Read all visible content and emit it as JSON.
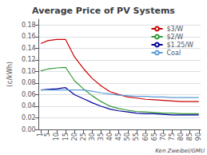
{
  "chart_data": {
    "type": "line",
    "title": "Average Price of PV Systems",
    "y_label": "(¢/kWh)",
    "annotations": [
      "Ken Zweibel/GMU"
    ],
    "x": [
      1,
      5,
      10,
      15,
      20,
      25,
      30,
      35,
      40,
      45,
      50,
      55,
      60,
      65,
      70,
      75,
      80,
      85,
      90
    ],
    "series": [
      {
        "name": "$3/W",
        "color": "#cc0000",
        "values": [
          0.148,
          0.153,
          0.155,
          0.155,
          0.125,
          0.105,
          0.088,
          0.075,
          0.065,
          0.06,
          0.056,
          0.054,
          0.052,
          0.051,
          0.05,
          0.049,
          0.048,
          0.048,
          0.048
        ]
      },
      {
        "name": "$2/W",
        "color": "#339933",
        "values": [
          0.101,
          0.104,
          0.106,
          0.107,
          0.084,
          0.07,
          0.058,
          0.048,
          0.04,
          0.036,
          0.033,
          0.031,
          0.03,
          0.029,
          0.028,
          0.028,
          0.027,
          0.027,
          0.027
        ]
      },
      {
        "name": "$1.25/W",
        "color": "#000099",
        "values": [
          0.068,
          0.069,
          0.07,
          0.072,
          0.06,
          0.053,
          0.046,
          0.04,
          0.035,
          0.032,
          0.03,
          0.028,
          0.027,
          0.027,
          0.026,
          0.025,
          0.025,
          0.025,
          0.025
        ]
      },
      {
        "name": "Coal",
        "color": "#5b9bd5",
        "values": [
          0.068,
          0.068,
          0.068,
          0.068,
          0.068,
          0.068,
          0.066,
          0.063,
          0.061,
          0.059,
          0.058,
          0.057,
          0.057,
          0.056,
          0.056,
          0.055,
          0.055,
          0.055,
          0.055
        ]
      }
    ],
    "xlim": [
      0,
      91
    ],
    "xticks": [
      1,
      5,
      10,
      15,
      20,
      25,
      30,
      35,
      40,
      45,
      50,
      55,
      60,
      65,
      70,
      75,
      80,
      85,
      90
    ],
    "ylim": [
      0,
      0.19
    ],
    "yticks": [
      {
        "value": 0,
        "label": "0.00"
      },
      0.02,
      0.04,
      0.06,
      0.08,
      {
        "value": 0.1,
        "label": "0.10"
      },
      0.12,
      0.14,
      0.16,
      0.18
    ],
    "grid": true,
    "legend": "upper right"
  }
}
